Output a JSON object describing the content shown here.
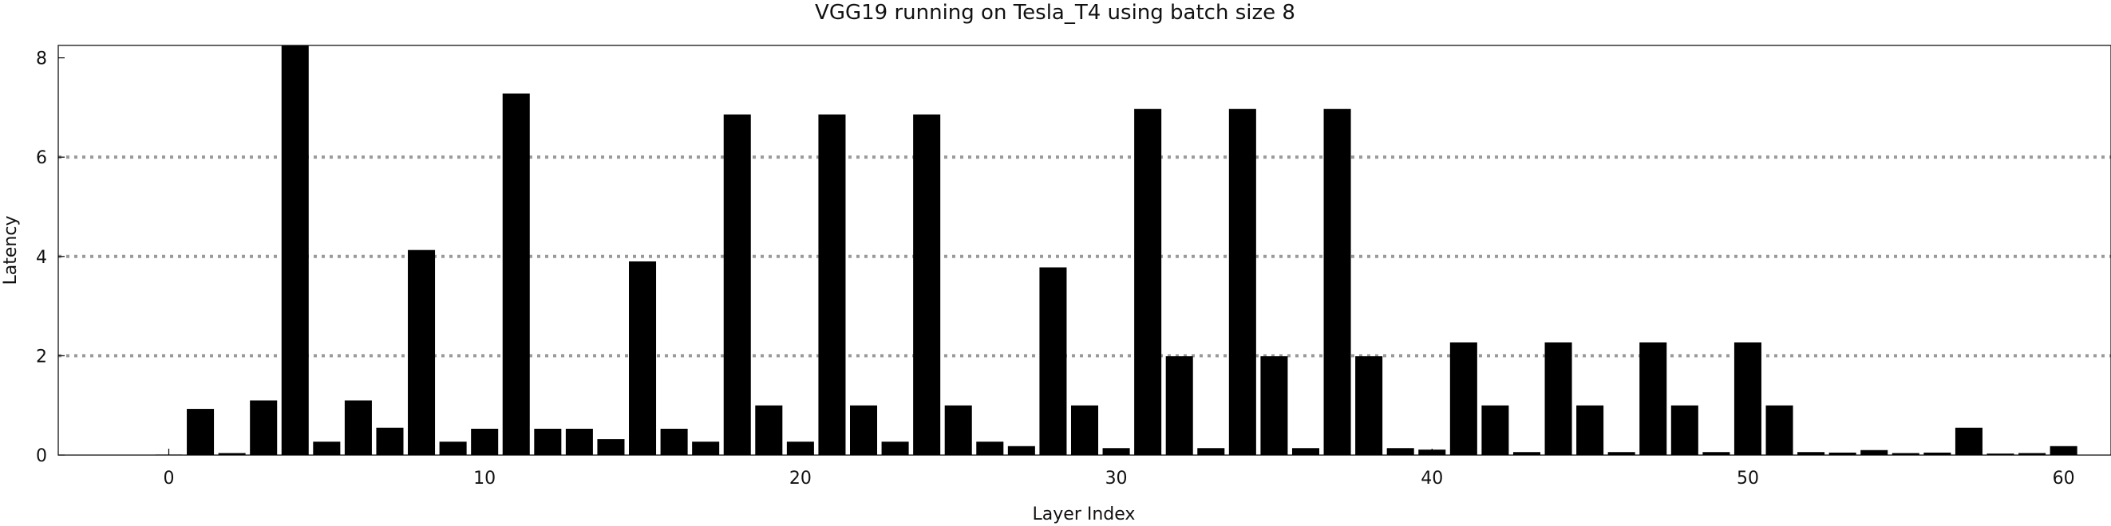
{
  "chart_data": {
    "type": "bar",
    "title": "VGG19 running on Tesla_T4 using batch size 8",
    "xlabel": "Layer Index",
    "ylabel": "Latency",
    "xlim": [
      -3.5,
      61.5
    ],
    "ylim": [
      0,
      8.25
    ],
    "xticks": [
      0,
      10,
      20,
      30,
      40,
      50,
      60
    ],
    "yticks": [
      0,
      2,
      4,
      6,
      8
    ],
    "grid": {
      "y": [
        2,
        4,
        6
      ],
      "style": "dotted",
      "color": "#9a9a9a"
    },
    "bar_color": "#000000",
    "x": [
      0,
      1,
      2,
      3,
      4,
      5,
      6,
      7,
      8,
      9,
      10,
      11,
      12,
      13,
      14,
      15,
      16,
      17,
      18,
      19,
      20,
      21,
      22,
      23,
      24,
      25,
      26,
      27,
      28,
      29,
      30,
      31,
      32,
      33,
      34,
      35,
      36,
      37,
      38,
      39,
      40,
      41,
      42,
      43,
      44,
      45,
      46,
      47,
      48,
      49,
      50,
      51,
      52,
      53,
      54,
      55,
      56,
      57,
      58,
      59,
      60
    ],
    "values": [
      0.01,
      0.93,
      0.04,
      1.1,
      8.3,
      0.27,
      1.1,
      0.55,
      4.13,
      0.27,
      0.53,
      7.28,
      0.53,
      0.53,
      0.32,
      3.9,
      0.53,
      0.27,
      6.86,
      1.0,
      0.27,
      6.86,
      1.0,
      0.27,
      6.86,
      1.0,
      0.27,
      0.18,
      3.78,
      1.0,
      0.14,
      6.97,
      1.99,
      0.14,
      6.97,
      1.99,
      0.14,
      6.97,
      1.99,
      0.14,
      0.11,
      2.27,
      1.0,
      0.06,
      2.27,
      1.0,
      0.06,
      2.27,
      1.0,
      0.06,
      2.27,
      1.0,
      0.06,
      0.05,
      0.1,
      0.04,
      0.05,
      0.55,
      0.03,
      0.04,
      0.18
    ]
  }
}
